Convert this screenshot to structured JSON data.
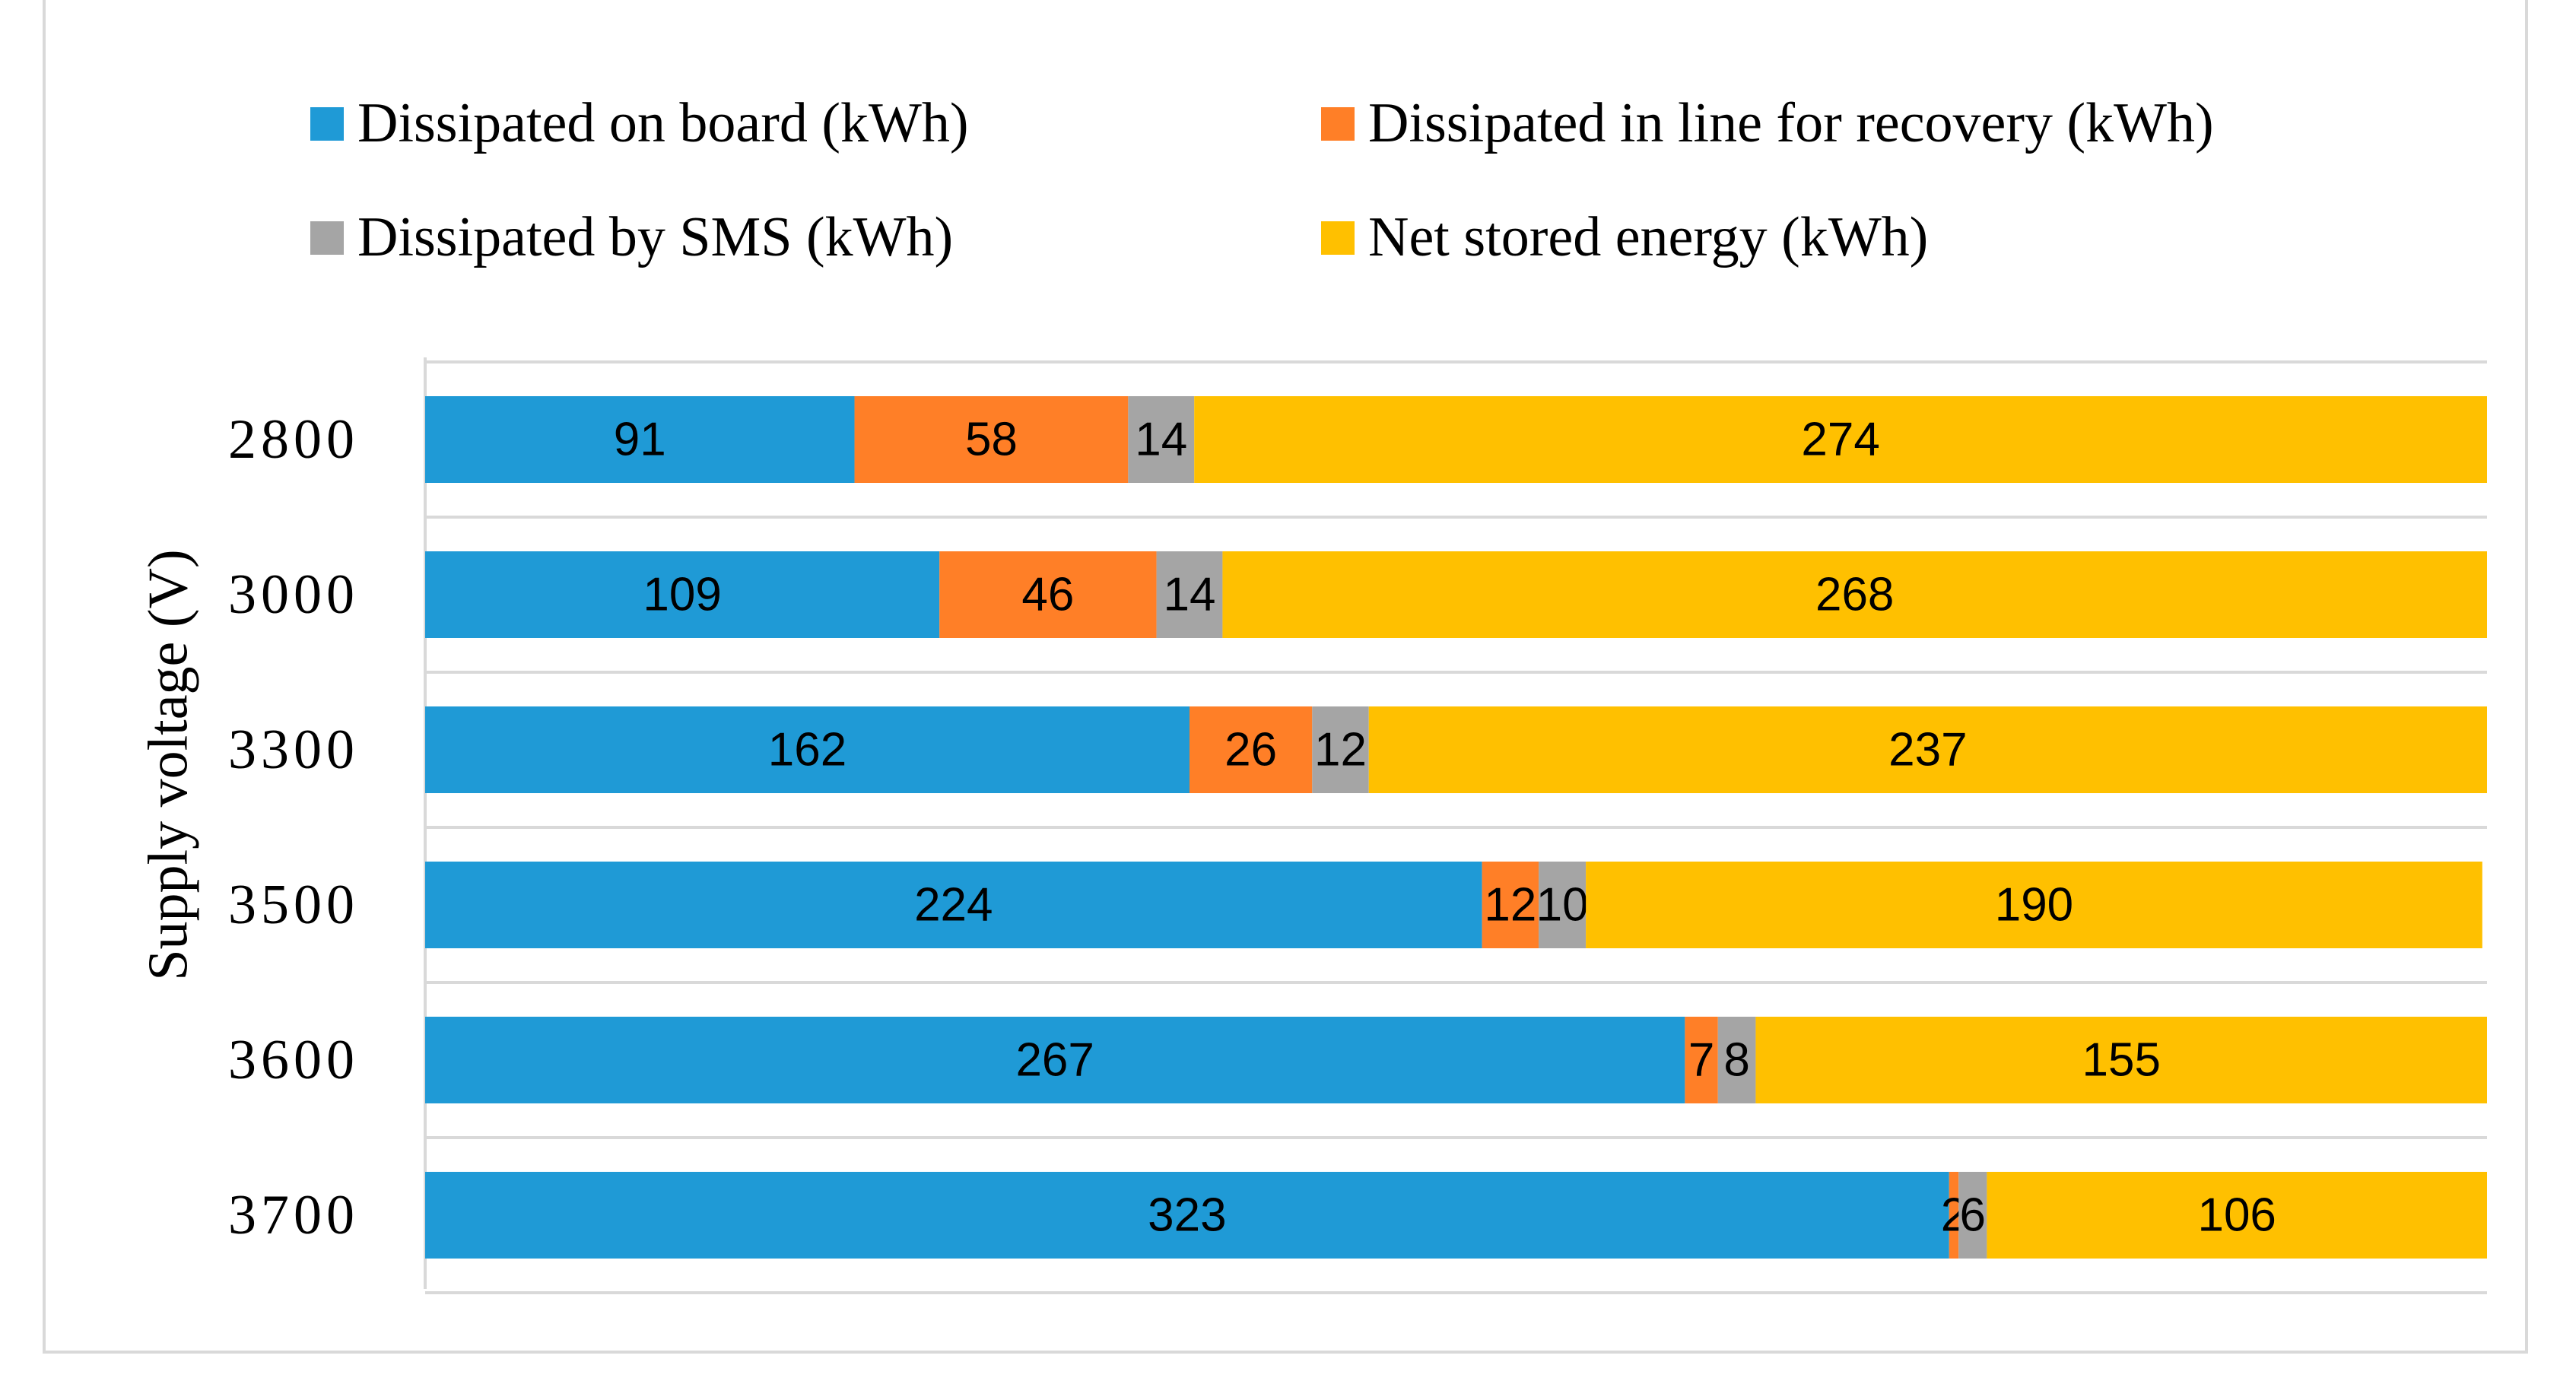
{
  "chart_data": {
    "type": "bar",
    "orientation": "horizontal",
    "stacked": true,
    "title": "",
    "xlabel": "",
    "ylabel": "Supply voltage (V)",
    "categories": [
      "2800",
      "3000",
      "3300",
      "3500",
      "3600",
      "3700"
    ],
    "xlim": [
      0,
      437
    ],
    "legend_position": "top",
    "grid": "horizontal separators",
    "series": [
      {
        "name": "Dissipated on board (kWh)",
        "color": "#1f9ad6",
        "values": [
          91,
          109,
          162,
          224,
          267,
          323
        ]
      },
      {
        "name": "Dissipated in line for recovery (kWh)",
        "color": "#ff7f27",
        "values": [
          58,
          46,
          26,
          12,
          7,
          2
        ]
      },
      {
        "name": "Dissipated by SMS (kWh)",
        "color": "#a5a5a5",
        "values": [
          14,
          14,
          12,
          10,
          8,
          6
        ]
      },
      {
        "name": "Net stored energy (kWh)",
        "color": "#ffc000",
        "values": [
          274,
          268,
          237,
          190,
          155,
          106
        ]
      }
    ]
  }
}
